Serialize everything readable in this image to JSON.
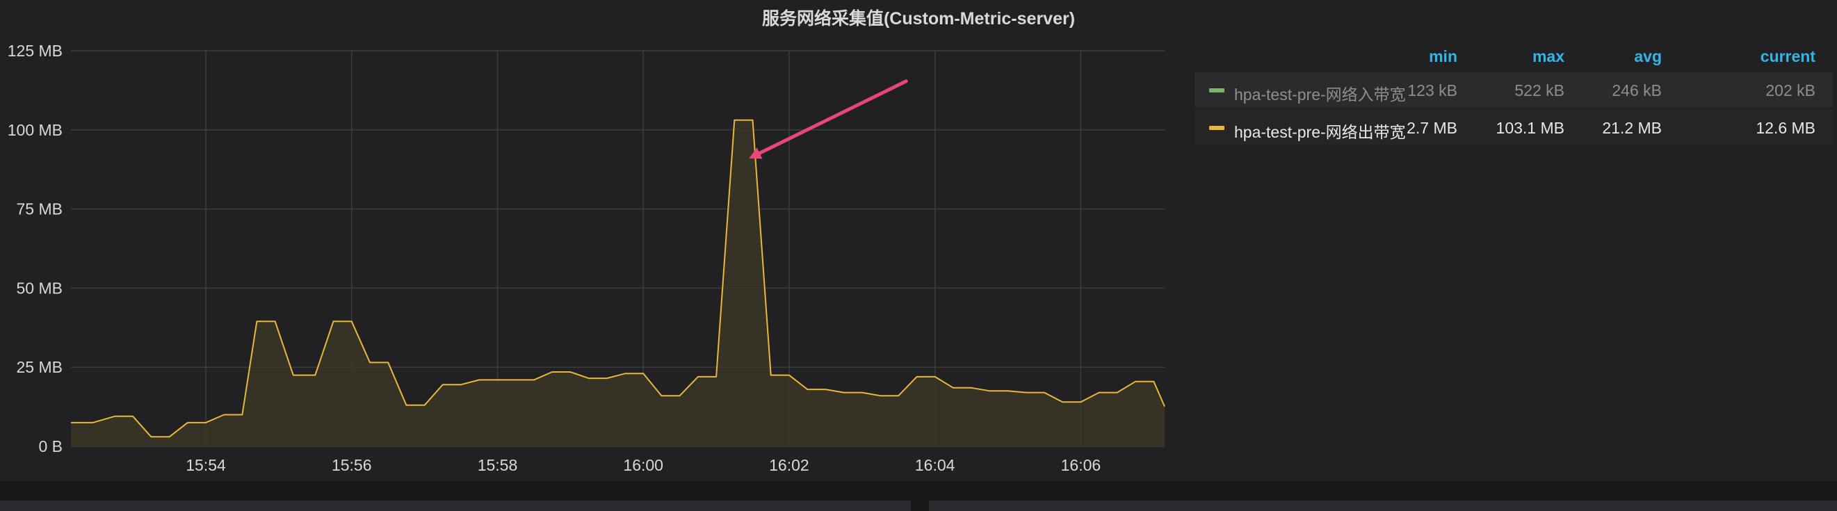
{
  "title": "服务网络采集值(Custom-Metric-server)",
  "chart_data": {
    "type": "area",
    "title": "服务网络采集值(Custom-Metric-server)",
    "xlabel": "",
    "ylabel": "",
    "x_tick_labels": [
      "15:54",
      "15:56",
      "15:58",
      "16:00",
      "16:02",
      "16:04",
      "16:06"
    ],
    "x_tick_minutes": [
      54,
      56,
      58,
      60,
      62,
      64,
      66
    ],
    "x_range_minutes": [
      52.15,
      67.15
    ],
    "y_tick_labels": [
      "0 B",
      "25 MB",
      "50 MB",
      "75 MB",
      "100 MB",
      "125 MB"
    ],
    "y_tick_values": [
      0,
      25,
      50,
      75,
      100,
      125
    ],
    "ylim": [
      0,
      125
    ],
    "grid": true,
    "legend_position": "right",
    "series": [
      {
        "name": "hpa-test-pre-网络出带宽",
        "color": "#eab839",
        "fill_color": "#3a3526",
        "minutes": [
          52.15,
          52.45,
          52.45,
          52.75,
          53.0,
          53.25,
          53.5,
          53.75,
          54.0,
          54.25,
          54.5,
          54.7,
          54.95,
          55.2,
          55.5,
          55.75,
          56.0,
          56.25,
          56.5,
          56.75,
          57.0,
          57.25,
          57.5,
          57.75,
          58.0,
          58.25,
          58.5,
          58.75,
          59.0,
          59.25,
          59.5,
          59.75,
          60.0,
          60.25,
          60.5,
          60.75,
          61.0,
          61.25,
          61.5,
          61.75,
          62.0,
          62.25,
          62.5,
          62.75,
          63.0,
          63.25,
          63.5,
          63.75,
          64.0,
          64.25,
          64.5,
          64.75,
          65.0,
          65.25,
          65.5,
          65.75,
          66.0,
          66.25,
          66.5,
          66.75,
          67.0,
          67.15
        ],
        "values": [
          7.5,
          7.5,
          7.5,
          9.5,
          9.5,
          3.0,
          3.0,
          7.5,
          7.5,
          10.0,
          10.0,
          39.5,
          39.5,
          22.5,
          22.5,
          39.5,
          39.5,
          26.5,
          26.5,
          13.0,
          13.0,
          19.5,
          19.5,
          21.0,
          21.0,
          21.0,
          21.0,
          23.5,
          23.5,
          21.5,
          21.5,
          23.0,
          23.0,
          16.0,
          16.0,
          22.0,
          22.0,
          103.1,
          103.1,
          22.5,
          22.5,
          18.0,
          18.0,
          17.0,
          17.0,
          16.0,
          16.0,
          22.0,
          22.0,
          18.5,
          18.5,
          17.5,
          17.5,
          17.0,
          17.0,
          14.0,
          14.0,
          17.0,
          17.0,
          20.5,
          20.5,
          12.6
        ],
        "stats": {
          "min": "2.7 MB",
          "max": "103.1 MB",
          "avg": "21.2 MB",
          "current": "12.6 MB"
        }
      },
      {
        "name": "hpa-test-pre-网络入带宽",
        "color": "#7eb26d",
        "hidden": true,
        "stats": {
          "min": "123 kB",
          "max": "522 kB",
          "avg": "246 kB",
          "current": "202 kB"
        }
      }
    ],
    "annotation": {
      "type": "arrow",
      "color": "#e8467c",
      "points_to_minutes": 61.45,
      "points_to_value": 91
    }
  },
  "legend": {
    "headers": {
      "min": "min",
      "max": "max",
      "avg": "avg",
      "current": "current"
    },
    "rows": [
      {
        "name": "hpa-test-pre-网络入带宽",
        "color": "#7eb26d",
        "min": "123 kB",
        "max": "522 kB",
        "avg": "246 kB",
        "current": "202 kB"
      },
      {
        "name": "hpa-test-pre-网络出带宽",
        "color": "#eab839",
        "min": "2.7 MB",
        "max": "103.1 MB",
        "avg": "21.2 MB",
        "current": "12.6 MB"
      }
    ]
  }
}
